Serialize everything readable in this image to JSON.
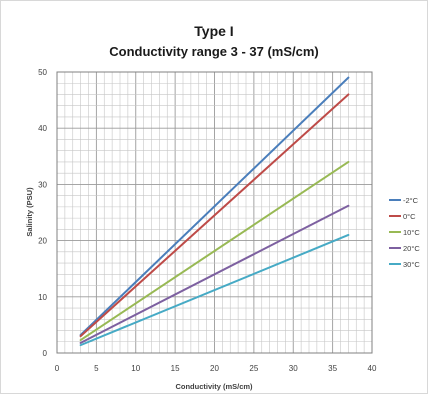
{
  "chart_data": {
    "type": "line",
    "title": "Type I",
    "subtitle": "Conductivity range 3 - 37 (mS/cm)",
    "xlabel": "Conductivity (mS/cm)",
    "ylabel": "Salinity (PSU)",
    "xlim": [
      0,
      40
    ],
    "ylim": [
      0,
      50
    ],
    "x_ticks": [
      0,
      5,
      10,
      15,
      20,
      25,
      30,
      35,
      40
    ],
    "y_ticks": [
      0,
      10,
      20,
      30,
      40,
      50
    ],
    "minor_grid_step_x": 1,
    "minor_grid_step_y": 2,
    "grid": true,
    "legend_position": "right",
    "x": [
      3,
      37
    ],
    "series": [
      {
        "name": "-2°C",
        "color": "#4a7ebb",
        "values": [
          3.2,
          49.0
        ]
      },
      {
        "name": "0°C",
        "color": "#be4b48",
        "values": [
          3.0,
          46.0
        ]
      },
      {
        "name": "10°C",
        "color": "#98b954",
        "values": [
          2.3,
          34.0
        ]
      },
      {
        "name": "20°C",
        "color": "#7d60a0",
        "values": [
          1.8,
          26.2
        ]
      },
      {
        "name": "30°C",
        "color": "#46aac5",
        "values": [
          1.4,
          21.0
        ]
      }
    ]
  }
}
